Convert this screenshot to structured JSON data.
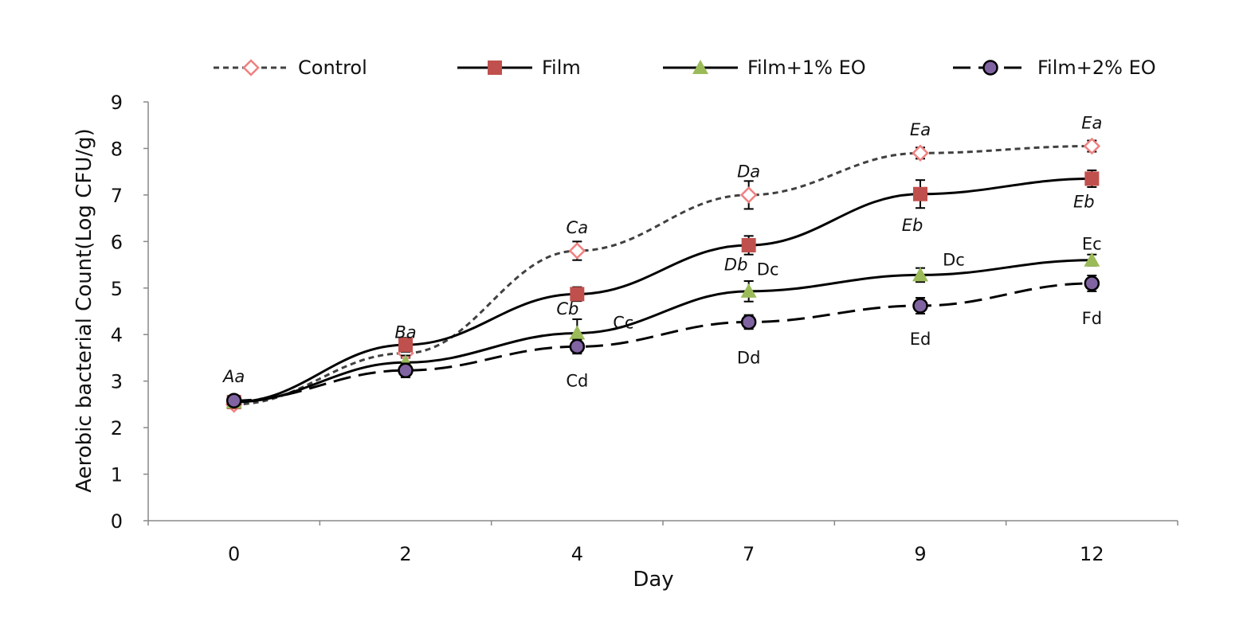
{
  "chart_data": {
    "type": "line",
    "title": "",
    "xlabel": "Day",
    "ylabel": "Aerobic bacterial Count(Log CFU/g)",
    "categories": [
      "0",
      "2",
      "4",
      "7",
      "9",
      "12"
    ],
    "ylim": [
      0,
      9
    ],
    "yticks": [
      "0",
      "1",
      "2",
      "3",
      "4",
      "5",
      "6",
      "7",
      "8",
      "9"
    ],
    "grid": false,
    "legend_position": "top",
    "series": [
      {
        "name": "Control",
        "values": [
          2.5,
          3.6,
          5.8,
          7.0,
          7.9,
          8.05
        ],
        "errors": [
          0.08,
          0.1,
          0.2,
          0.3,
          0.12,
          0.12
        ],
        "color": "#f08080",
        "line_style": "short-dash",
        "line_color": "#404040",
        "marker": "diamond-open"
      },
      {
        "name": "Film",
        "values": [
          2.55,
          3.78,
          4.87,
          5.92,
          7.02,
          7.35
        ],
        "errors": [
          0.08,
          0.15,
          0.15,
          0.2,
          0.3,
          0.18
        ],
        "color": "#c0504d",
        "line_style": "solid",
        "line_color": "#000000",
        "marker": "square"
      },
      {
        "name": "Film+1% EO",
        "values": [
          2.55,
          3.4,
          4.03,
          4.93,
          5.28,
          5.6
        ],
        "errors": [
          0.08,
          0.15,
          0.3,
          0.22,
          0.15,
          0.12
        ],
        "color": "#9bbb59",
        "line_style": "solid",
        "line_color": "#000000",
        "marker": "triangle"
      },
      {
        "name": "Film+2% EO",
        "values": [
          2.58,
          3.23,
          3.74,
          4.27,
          4.62,
          5.1
        ],
        "errors": [
          0.08,
          0.15,
          0.15,
          0.15,
          0.17,
          0.17
        ],
        "color": "#8064a2",
        "line_style": "long-dash",
        "line_color": "#000000",
        "marker": "circle"
      }
    ],
    "annotations": [
      {
        "text": "Aa",
        "cat": "0",
        "y": 3.1,
        "italic": true
      },
      {
        "text": "Ba",
        "cat": "2",
        "y": 4.05,
        "italic": true
      },
      {
        "text": "Ca",
        "cat": "4",
        "y": 6.3,
        "italic": true
      },
      {
        "text": "Cb",
        "cat": "4",
        "y": 4.55,
        "italic": true,
        "dx": -12
      },
      {
        "text": "Cc",
        "cat": "4",
        "y": 4.25,
        "italic": false,
        "dx": 58
      },
      {
        "text": "Cd",
        "cat": "4",
        "y": 3.0,
        "italic": false
      },
      {
        "text": "Da",
        "cat": "7",
        "y": 7.5,
        "italic": true
      },
      {
        "text": "Db",
        "cat": "7",
        "y": 5.5,
        "italic": true,
        "dx": -16
      },
      {
        "text": "Dc",
        "cat": "7",
        "y": 5.4,
        "italic": false,
        "dx": 24
      },
      {
        "text": "Dd",
        "cat": "7",
        "y": 3.5,
        "italic": false
      },
      {
        "text": "Ea",
        "cat": "9",
        "y": 8.4,
        "italic": true
      },
      {
        "text": "Eb",
        "cat": "9",
        "y": 6.35,
        "italic": true,
        "dx": -10
      },
      {
        "text": "Dc",
        "cat": "9",
        "y": 5.6,
        "italic": false,
        "dx": 42
      },
      {
        "text": "Ed",
        "cat": "9",
        "y": 3.9,
        "italic": false
      },
      {
        "text": "Ea",
        "cat": "12",
        "y": 8.55,
        "italic": true
      },
      {
        "text": "Eb",
        "cat": "12",
        "y": 6.85,
        "italic": true,
        "dx": -10
      },
      {
        "text": "Ec",
        "cat": "12",
        "y": 5.95,
        "italic": false
      },
      {
        "text": "Fd",
        "cat": "12",
        "y": 4.35,
        "italic": false
      }
    ]
  }
}
